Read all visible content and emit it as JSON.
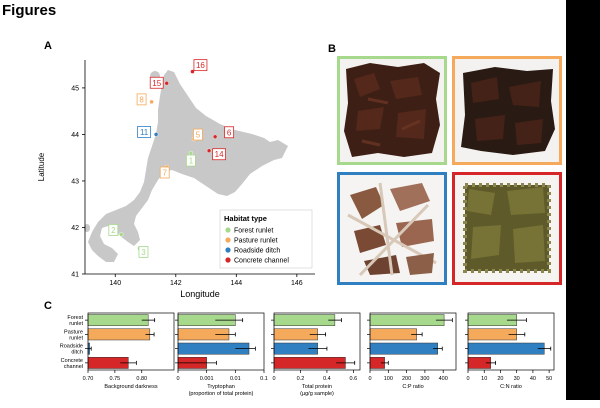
{
  "header": {
    "title": "Figures"
  },
  "panel_a": {
    "label": "A",
    "xlabel": "Longitude",
    "ylabel": "Latitude",
    "x_ticks": [
      "140",
      "142",
      "144",
      "146"
    ],
    "y_ticks": [
      "41",
      "42",
      "43",
      "44",
      "45"
    ],
    "legend_title": "Habitat type",
    "legend": [
      {
        "name": "Forest runlet",
        "color": "#a6d98c"
      },
      {
        "name": "Pasture runlet",
        "color": "#f5a95a"
      },
      {
        "name": "Roadside ditch",
        "color": "#2f7fc1"
      },
      {
        "name": "Concrete channel",
        "color": "#d62728"
      }
    ],
    "sites": [
      {
        "id": "1",
        "habitat": "Forest runlet",
        "lon": 142.5,
        "lat": 43.6
      },
      {
        "id": "2",
        "habitat": "Forest runlet",
        "lon": 140.2,
        "lat": 41.85
      },
      {
        "id": "3",
        "habitat": "Forest runlet",
        "lon": 140.8,
        "lat": 41.55
      },
      {
        "id": "5",
        "habitat": "Pasture runlet",
        "lon": 142.6,
        "lat": 43.9
      },
      {
        "id": "6",
        "habitat": "Concrete channel",
        "lon": 143.3,
        "lat": 43.95
      },
      {
        "id": "7",
        "habitat": "Pasture runlet",
        "lon": 141.7,
        "lat": 43.3
      },
      {
        "id": "8",
        "habitat": "Pasture runlet",
        "lon": 141.2,
        "lat": 44.7
      },
      {
        "id": "11",
        "habitat": "Roadside ditch",
        "lon": 141.35,
        "lat": 44.0
      },
      {
        "id": "14",
        "habitat": "Concrete channel",
        "lon": 143.1,
        "lat": 43.65
      },
      {
        "id": "15",
        "habitat": "Concrete channel",
        "lon": 141.7,
        "lat": 45.1
      },
      {
        "id": "16",
        "habitat": "Concrete channel",
        "lon": 142.55,
        "lat": 45.35
      }
    ]
  },
  "panel_b": {
    "label": "B"
  },
  "panel_c": {
    "label": "C"
  },
  "chart_data": [
    {
      "type": "bar",
      "orientation": "horizontal",
      "categories": [
        "Forest\nrunlet",
        "Pasture\nrunlet",
        "Roadside\nditch",
        "Concrete\nchannel"
      ],
      "values": [
        0.812,
        0.815,
        0.703,
        0.775
      ],
      "errors": [
        0.012,
        0.008,
        0.003,
        0.015
      ],
      "colors": [
        "#a6d98c",
        "#f5a95a",
        "#2f7fc1",
        "#d62728"
      ],
      "xlabel": "Background darkness",
      "xlim": [
        0.7,
        0.86
      ],
      "x_ticks": [
        0.7,
        0.75,
        0.8
      ],
      "tick_labels": [
        "0.70",
        "0.75",
        "0.80"
      ],
      "scale": "linear"
    },
    {
      "type": "bar",
      "orientation": "horizontal",
      "categories": [
        "Forest\nrunlet",
        "Pasture\nrunlet",
        "Roadside\nditch",
        "Concrete\nchannel"
      ],
      "values": [
        0.01,
        0.006,
        0.03,
        0.001
      ],
      "errors": [
        0.008,
        0.004,
        0.02,
        0.0012
      ],
      "colors": [
        "#a6d98c",
        "#f5a95a",
        "#2f7fc1",
        "#d62728"
      ],
      "xlabel": "Tryptophan\n(proportion of total protein)",
      "xlim": [
        0,
        0.1
      ],
      "x_ticks": [
        0,
        0.001,
        0.01,
        0.1
      ],
      "tick_labels": [
        "0",
        "0.001",
        "0.01",
        "0.1"
      ],
      "scale": "symlog"
    },
    {
      "type": "bar",
      "orientation": "horizontal",
      "categories": [
        "Forest\nrunlet",
        "Pasture\nrunlet",
        "Roadside\nditch",
        "Concrete\nchannel"
      ],
      "values": [
        0.46,
        0.33,
        0.33,
        0.54
      ],
      "errors": [
        0.05,
        0.06,
        0.07,
        0.07
      ],
      "colors": [
        "#a6d98c",
        "#f5a95a",
        "#2f7fc1",
        "#d62728"
      ],
      "xlabel": "Total protein\n(µg/g sample)",
      "xlim": [
        0,
        0.65
      ],
      "x_ticks": [
        0,
        0.2,
        0.4,
        0.6
      ],
      "tick_labels": [
        "0",
        "0.2",
        "0.4",
        "0.6"
      ],
      "scale": "linear"
    },
    {
      "type": "bar",
      "orientation": "horizontal",
      "categories": [
        "Forest\nrunlet",
        "Pasture\nrunlet",
        "Roadside\nditch",
        "Concrete\nchannel"
      ],
      "values": [
        405,
        255,
        370,
        80
      ],
      "errors": [
        45,
        30,
        25,
        20
      ],
      "colors": [
        "#a6d98c",
        "#f5a95a",
        "#2f7fc1",
        "#d62728"
      ],
      "xlabel": "C:P ratio",
      "xlim": [
        0,
        470
      ],
      "x_ticks": [
        0,
        100,
        200,
        300,
        400
      ],
      "tick_labels": [
        "0",
        "100",
        "200",
        "300",
        "400"
      ],
      "scale": "linear"
    },
    {
      "type": "bar",
      "orientation": "horizontal",
      "categories": [
        "Forest\nrunlet",
        "Pasture\nrunlet",
        "Roadside\nditch",
        "Concrete\nchannel"
      ],
      "values": [
        30,
        30,
        47,
        14
      ],
      "errors": [
        6,
        5,
        4,
        3
      ],
      "colors": [
        "#a6d98c",
        "#f5a95a",
        "#2f7fc1",
        "#d62728"
      ],
      "xlabel": "C:N ratio",
      "xlim": [
        0,
        53
      ],
      "x_ticks": [
        0,
        10,
        20,
        30,
        40,
        50
      ],
      "tick_labels": [
        "0",
        "10",
        "20",
        "30",
        "40",
        "50"
      ],
      "scale": "linear"
    }
  ]
}
